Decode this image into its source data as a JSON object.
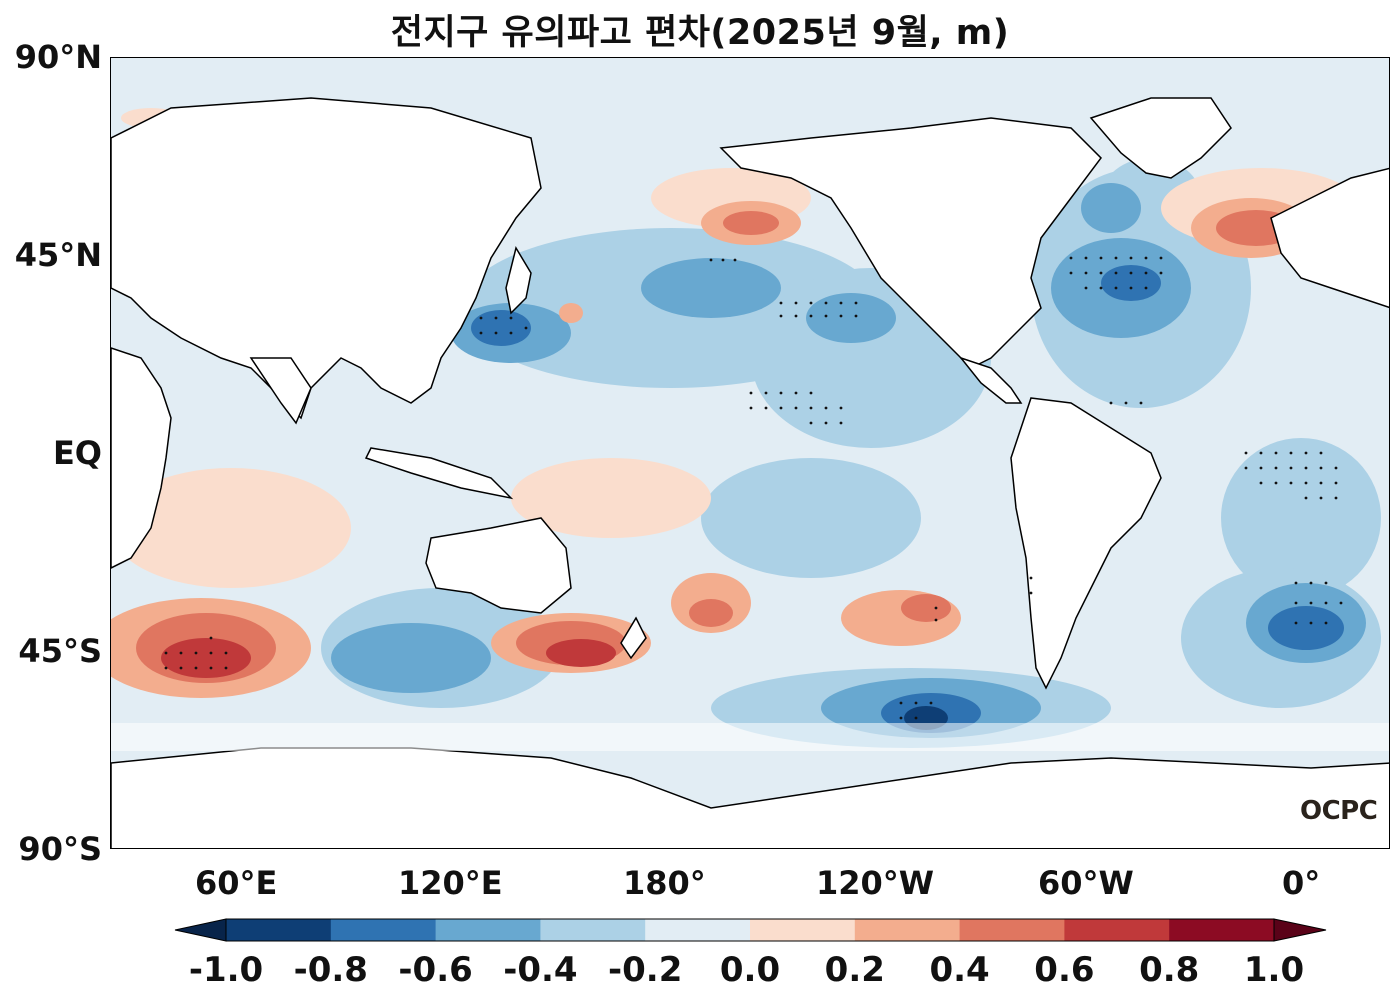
{
  "title": "전지구 유의파고 편차(2025년 9월, m)",
  "logo": "OCPC",
  "lat_ticks": [
    "90°N",
    "45°N",
    "EQ",
    "45°S",
    "90°S"
  ],
  "lon_ticks": [
    "60°E",
    "120°E",
    "180°",
    "120°W",
    "60°W",
    "0°"
  ],
  "colorbar": {
    "ticks": [
      "-1.0",
      "-0.8",
      "-0.6",
      "-0.4",
      "-0.2",
      "0.0",
      "0.2",
      "0.4",
      "0.6",
      "0.8",
      "1.0"
    ],
    "colors": [
      "#0e3e75",
      "#2f73b2",
      "#68a8d0",
      "#acd1e6",
      "#e2edf4",
      "#faddcd",
      "#f3ad8e",
      "#e07660",
      "#c0393a",
      "#8c0b23"
    ],
    "extend": "both"
  },
  "map": {
    "projection": "PlateCarree",
    "central_longitude": "-150",
    "lon_range": [
      24,
      384
    ],
    "lat_range": [
      -90,
      90
    ],
    "variable": "significant wave height anomaly (m)",
    "stippling": "significant regions"
  }
}
